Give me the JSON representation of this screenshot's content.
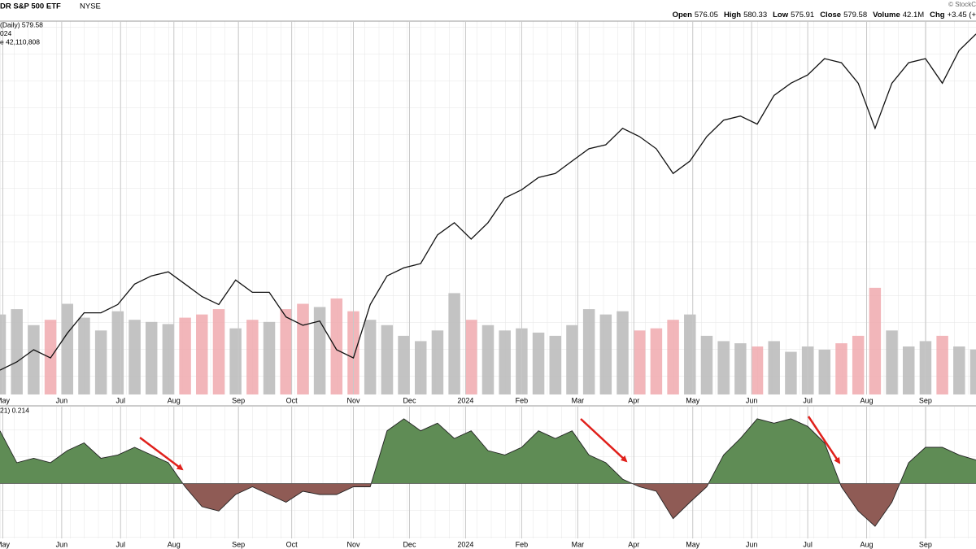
{
  "header": {
    "title": "DR S&P 500 ETF",
    "exchange": "NYSE",
    "copyright": "© StockC",
    "quote": [
      [
        "Open",
        "576.05"
      ],
      [
        "High",
        "580.33"
      ],
      [
        "Low",
        "575.91"
      ],
      [
        "Close",
        "579.58"
      ],
      [
        "Volume",
        "42.1M"
      ],
      [
        "Chg",
        "+3.45 (+"
      ]
    ]
  },
  "chart_data": [
    {
      "type": "line",
      "legend": [
        "(Daily) 579.58",
        "024"
      ],
      "color": "#111111",
      "xlim": [
        0,
        348
      ],
      "ylim": [
        400,
        586
      ],
      "xticks": [
        {
          "value": 1,
          "label": "May"
        },
        {
          "value": 22,
          "label": "Jun"
        },
        {
          "value": 43,
          "label": "Jul"
        },
        {
          "value": 62,
          "label": "Aug"
        },
        {
          "value": 85,
          "label": "Sep"
        },
        {
          "value": 104,
          "label": "Oct"
        },
        {
          "value": 126,
          "label": "Nov"
        },
        {
          "value": 146,
          "label": "Dec"
        },
        {
          "value": 166,
          "label": "2024"
        },
        {
          "value": 186,
          "label": "Feb"
        },
        {
          "value": 206,
          "label": "Mar"
        },
        {
          "value": 226,
          "label": "Apr"
        },
        {
          "value": 247,
          "label": "May"
        },
        {
          "value": 268,
          "label": "Jun"
        },
        {
          "value": 288,
          "label": "Jul"
        },
        {
          "value": 309,
          "label": "Aug"
        },
        {
          "value": 330,
          "label": "Sep"
        }
      ],
      "x": [
        0,
        6,
        12,
        18,
        24,
        30,
        36,
        42,
        48,
        54,
        60,
        66,
        72,
        78,
        84,
        90,
        96,
        102,
        108,
        114,
        120,
        126,
        132,
        138,
        144,
        150,
        156,
        162,
        168,
        174,
        180,
        186,
        192,
        198,
        204,
        210,
        216,
        222,
        228,
        234,
        240,
        246,
        252,
        258,
        264,
        270,
        276,
        282,
        288,
        294,
        300,
        306,
        312,
        318,
        324,
        330,
        336,
        342,
        348
      ],
      "values": [
        412.1,
        416.2,
        422.3,
        418.2,
        430.5,
        440.7,
        440.7,
        444.8,
        455.0,
        459.1,
        461.1,
        455.0,
        448.8,
        444.8,
        457.0,
        450.9,
        450.9,
        438.6,
        434.5,
        436.6,
        422.3,
        418.2,
        444.8,
        459.1,
        463.1,
        465.2,
        479.5,
        485.6,
        477.4,
        485.6,
        497.9,
        502.0,
        508.1,
        510.1,
        516.3,
        522.4,
        524.4,
        532.6,
        528.5,
        522.4,
        510.1,
        516.3,
        528.5,
        536.7,
        538.7,
        534.7,
        549.0,
        555.1,
        559.2,
        567.3,
        565.3,
        555.1,
        532.6,
        555.1,
        565.3,
        567.3,
        555.1,
        571.4,
        579.58
      ]
    },
    {
      "type": "bar",
      "legend": [
        "e 42,110,808"
      ],
      "colors": {
        "up": "#b8b8b8",
        "down": "#f0a9ae"
      },
      "xlim": [
        0,
        348
      ],
      "ylim": [
        0,
        350000000
      ],
      "x": [
        0,
        6,
        12,
        18,
        24,
        30,
        36,
        42,
        48,
        54,
        60,
        66,
        72,
        78,
        84,
        90,
        96,
        102,
        108,
        114,
        120,
        126,
        132,
        138,
        144,
        150,
        156,
        162,
        168,
        174,
        180,
        186,
        192,
        198,
        204,
        210,
        216,
        222,
        228,
        234,
        240,
        246,
        252,
        258,
        264,
        270,
        276,
        282,
        288,
        294,
        300,
        306,
        312,
        318,
        324,
        330,
        336,
        342,
        348
      ],
      "values": [
        75000000,
        80000000,
        65000000,
        70000000,
        85000000,
        72000000,
        60000000,
        78000000,
        70000000,
        68000000,
        66000000,
        72000000,
        75000000,
        80000000,
        62000000,
        70000000,
        68000000,
        80000000,
        85000000,
        82000000,
        90000000,
        78000000,
        70000000,
        65000000,
        55000000,
        50000000,
        60000000,
        95000000,
        70000000,
        65000000,
        60000000,
        62000000,
        58000000,
        55000000,
        65000000,
        80000000,
        75000000,
        78000000,
        60000000,
        62000000,
        70000000,
        75000000,
        55000000,
        50000000,
        48000000,
        45000000,
        50000000,
        40000000,
        45000000,
        42000000,
        48000000,
        55000000,
        100000000,
        60000000,
        45000000,
        50000000,
        55000000,
        45000000,
        42110808
      ]
    },
    {
      "type": "area",
      "legend": [
        "21) 0.214"
      ],
      "colors": {
        "positive": "#5f8c55",
        "negative": "#8f5b55",
        "line": "#222222"
      },
      "xlim": [
        0,
        348
      ],
      "ylim": [
        -0.5,
        0.7
      ],
      "xticks": [
        {
          "value": 1,
          "label": "May"
        },
        {
          "value": 22,
          "label": "Jun"
        },
        {
          "value": 43,
          "label": "Jul"
        },
        {
          "value": 62,
          "label": "Aug"
        },
        {
          "value": 85,
          "label": "Sep"
        },
        {
          "value": 104,
          "label": "Oct"
        },
        {
          "value": 126,
          "label": "Nov"
        },
        {
          "value": 146,
          "label": "Dec"
        },
        {
          "value": 166,
          "label": "2024"
        },
        {
          "value": 186,
          "label": "Feb"
        },
        {
          "value": 206,
          "label": "Mar"
        },
        {
          "value": 226,
          "label": "Apr"
        },
        {
          "value": 247,
          "label": "May"
        },
        {
          "value": 268,
          "label": "Jun"
        },
        {
          "value": 288,
          "label": "Jul"
        },
        {
          "value": 309,
          "label": "Aug"
        },
        {
          "value": 330,
          "label": "Sep"
        }
      ],
      "x": [
        0,
        6,
        12,
        18,
        24,
        30,
        36,
        42,
        48,
        54,
        60,
        66,
        72,
        78,
        84,
        90,
        96,
        102,
        108,
        114,
        120,
        126,
        132,
        138,
        144,
        150,
        156,
        162,
        168,
        174,
        180,
        186,
        192,
        198,
        204,
        210,
        216,
        222,
        228,
        234,
        240,
        246,
        252,
        258,
        264,
        270,
        276,
        282,
        288,
        294,
        300,
        306,
        312,
        318,
        324,
        330,
        336,
        342,
        348
      ],
      "values": [
        0.48,
        0.19,
        0.23,
        0.19,
        0.3,
        0.37,
        0.23,
        0.26,
        0.33,
        0.26,
        0.19,
        -0.03,
        -0.21,
        -0.25,
        -0.1,
        -0.03,
        -0.1,
        -0.17,
        -0.07,
        -0.1,
        -0.1,
        -0.03,
        -0.03,
        0.48,
        0.59,
        0.48,
        0.55,
        0.41,
        0.48,
        0.3,
        0.26,
        0.33,
        0.48,
        0.41,
        0.48,
        0.26,
        0.19,
        0.04,
        -0.03,
        -0.07,
        -0.32,
        -0.17,
        -0.03,
        0.26,
        0.41,
        0.59,
        0.55,
        0.59,
        0.52,
        0.37,
        -0.03,
        -0.25,
        -0.39,
        -0.17,
        0.19,
        0.33,
        0.33,
        0.26,
        0.214
      ]
    }
  ]
}
